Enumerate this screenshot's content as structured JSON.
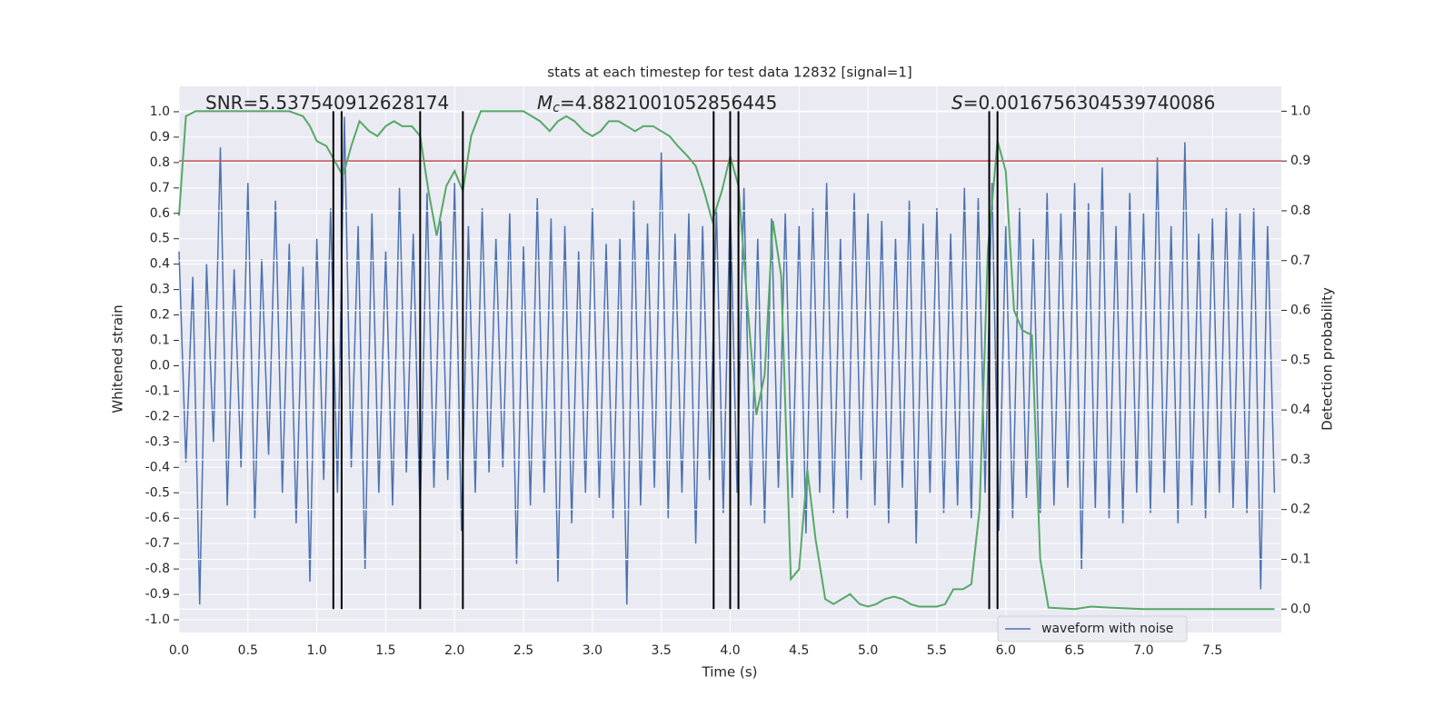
{
  "chart_data": {
    "type": "line",
    "title": "stats at each timestep for test data 12832 [signal=1]",
    "xlabel": "Time (s)",
    "ylabel": "Whitened strain",
    "y2label": "Detection probability",
    "xlim": [
      0,
      8.0
    ],
    "ylim": [
      -1.05,
      1.1
    ],
    "y2lim": [
      -0.047,
      1.05
    ],
    "xticks": [
      {
        "value": 0,
        "label": "0.0"
      },
      0.5,
      {
        "value": 1,
        "label": "1.0"
      },
      1.5,
      {
        "value": 2,
        "label": "2.0"
      },
      2.5,
      {
        "value": 3,
        "label": "3.0"
      },
      3.5,
      {
        "value": 4,
        "label": "4.0"
      },
      4.5,
      {
        "value": 5,
        "label": "5.0"
      },
      5.5,
      {
        "value": 6,
        "label": "6.0"
      },
      6.5,
      {
        "value": 7,
        "label": "7.0"
      },
      7.5
    ],
    "yticks": [
      {
        "value": -1,
        "label": "-1.0"
      },
      -0.9,
      -0.8,
      -0.7,
      -0.6,
      -0.5,
      -0.4,
      -0.3,
      -0.2,
      -0.1,
      {
        "value": 0,
        "label": "0.0"
      },
      0.1,
      0.2,
      0.3,
      0.4,
      0.5,
      0.6,
      0.7,
      0.8,
      0.9,
      {
        "value": 1,
        "label": "1.0"
      }
    ],
    "y2ticks": [
      {
        "value": 0,
        "label": "0.0"
      },
      0.1,
      0.2,
      0.3,
      0.4,
      0.5,
      0.6,
      0.7,
      0.8,
      0.9,
      {
        "value": 1,
        "label": "1.0"
      }
    ],
    "grid": true,
    "legend": "best",
    "annotations": [
      {
        "text": "SNR=5.537540912628174"
      },
      {
        "symbol": "M",
        "subscript": "c",
        "text": "=4.8821001052856445"
      },
      {
        "symbol": "S",
        "text": "=0.0016756304539740086"
      }
    ],
    "threshold": {
      "value": 0.9,
      "axis": "y2",
      "color": "#c44e52"
    },
    "vlines": [
      1.12,
      1.18,
      1.75,
      2.06,
      3.88,
      4.0,
      4.06,
      5.88,
      5.94
    ],
    "vline_range": [
      0,
      1
    ],
    "vline_color": "#000000",
    "series": [
      {
        "name": "waveform with noise",
        "color": "#4c72b0",
        "x": [
          0,
          0.05,
          0.1,
          0.15,
          0.2,
          0.25,
          0.3,
          0.35,
          0.4,
          0.45,
          0.5,
          0.55,
          0.6,
          0.65,
          0.7,
          0.75,
          0.8,
          0.85,
          0.9,
          0.95,
          1,
          1.05,
          1.1,
          1.15,
          1.2,
          1.25,
          1.3,
          1.35,
          1.4,
          1.45,
          1.5,
          1.55,
          1.6,
          1.65,
          1.7,
          1.75,
          1.8,
          1.85,
          1.9,
          1.95,
          2,
          2.05,
          2.1,
          2.15,
          2.2,
          2.25,
          2.3,
          2.35,
          2.4,
          2.45,
          2.5,
          2.55,
          2.6,
          2.65,
          2.7,
          2.75,
          2.8,
          2.85,
          2.9,
          2.95,
          3,
          3.05,
          3.1,
          3.15,
          3.2,
          3.25,
          3.3,
          3.35,
          3.4,
          3.45,
          3.5,
          3.55,
          3.6,
          3.65,
          3.7,
          3.75,
          3.8,
          3.85,
          3.9,
          3.95,
          4,
          4.05,
          4.1,
          4.15,
          4.2,
          4.25,
          4.3,
          4.35,
          4.4,
          4.45,
          4.5,
          4.55,
          4.6,
          4.65,
          4.7,
          4.75,
          4.8,
          4.85,
          4.9,
          4.95,
          5,
          5.05,
          5.1,
          5.15,
          5.2,
          5.25,
          5.3,
          5.35,
          5.4,
          5.45,
          5.5,
          5.55,
          5.6,
          5.65,
          5.7,
          5.75,
          5.8,
          5.85,
          5.9,
          5.95,
          6,
          6.05,
          6.1,
          6.15,
          6.2,
          6.25,
          6.3,
          6.35,
          6.4,
          6.45,
          6.5,
          6.55,
          6.6,
          6.65,
          6.7,
          6.75,
          6.8,
          6.85,
          6.9,
          6.95,
          7,
          7.05,
          7.1,
          7.15,
          7.2,
          7.25,
          7.3,
          7.35,
          7.4,
          7.45,
          7.5,
          7.55,
          7.6,
          7.65,
          7.7,
          7.75,
          7.8,
          7.85,
          7.9,
          7.95
        ],
        "values": [
          0.45,
          -0.38,
          0.35,
          -0.94,
          0.4,
          -0.3,
          0.86,
          -0.55,
          0.38,
          -0.4,
          0.72,
          -0.6,
          0.42,
          -0.35,
          0.65,
          -0.5,
          0.48,
          -0.62,
          0.39,
          -0.85,
          0.5,
          -0.45,
          0.62,
          -0.5,
          0.98,
          -0.4,
          0.55,
          -0.8,
          0.6,
          -0.5,
          0.45,
          -0.55,
          0.7,
          -0.42,
          0.52,
          -0.6,
          0.68,
          -0.48,
          0.57,
          -0.45,
          0.72,
          -0.65,
          0.55,
          -0.5,
          0.62,
          -0.42,
          0.5,
          -0.4,
          0.6,
          -0.78,
          0.47,
          -0.55,
          0.66,
          -0.5,
          0.58,
          -0.85,
          0.55,
          -0.62,
          0.45,
          -0.5,
          0.62,
          -0.52,
          0.48,
          -0.6,
          0.5,
          -0.94,
          0.65,
          -0.55,
          0.56,
          -0.48,
          0.84,
          -0.6,
          0.52,
          -0.5,
          0.6,
          -0.7,
          0.55,
          -0.45,
          0.62,
          -0.58,
          0.65,
          -0.5,
          0.7,
          -0.55,
          0.5,
          -0.62,
          0.58,
          -0.48,
          0.6,
          -0.52,
          0.55,
          -0.66,
          0.62,
          -0.5,
          0.72,
          -0.58,
          0.5,
          -0.6,
          0.68,
          -0.45,
          0.6,
          -0.55,
          0.57,
          -0.62,
          0.5,
          -0.48,
          0.65,
          -0.7,
          0.56,
          -0.5,
          0.62,
          -0.58,
          0.52,
          -0.55,
          0.7,
          -0.6,
          0.66,
          -0.5,
          0.72,
          -0.65,
          0.55,
          -0.6,
          0.62,
          -0.52,
          0.5,
          -0.58,
          0.68,
          -0.55,
          0.6,
          -0.48,
          0.72,
          -0.8,
          0.64,
          -0.56,
          0.78,
          -0.6,
          0.55,
          -0.62,
          0.68,
          -0.5,
          0.6,
          -0.58,
          0.82,
          -0.5,
          0.55,
          -0.62,
          0.88,
          -0.55,
          0.52,
          -0.6,
          0.58,
          -0.5,
          0.62,
          -0.56,
          0.6,
          -0.58,
          0.62,
          -0.88,
          0.55,
          -0.5
        ]
      },
      {
        "color": "#55a868",
        "axis": "y2",
        "x": [
          0,
          0.05,
          0.12,
          0.8,
          0.9,
          0.95,
          1.0,
          1.07,
          1.13,
          1.19,
          1.25,
          1.31,
          1.38,
          1.44,
          1.5,
          1.56,
          1.62,
          1.69,
          1.75,
          1.81,
          1.87,
          1.94,
          2.0,
          2.06,
          2.12,
          2.19,
          2.25,
          2.5,
          2.56,
          2.62,
          2.69,
          2.75,
          2.81,
          2.87,
          2.94,
          3.0,
          3.06,
          3.12,
          3.19,
          3.25,
          3.31,
          3.37,
          3.44,
          3.5,
          3.56,
          3.62,
          3.69,
          3.75,
          3.81,
          3.87,
          3.94,
          4.0,
          4.06,
          4.12,
          4.19,
          4.25,
          4.31,
          4.37,
          4.44,
          4.5,
          4.56,
          4.62,
          4.69,
          4.75,
          4.81,
          4.87,
          4.94,
          5.0,
          5.06,
          5.12,
          5.19,
          5.25,
          5.31,
          5.37,
          5.5,
          5.56,
          5.62,
          5.69,
          5.75,
          5.81,
          5.87,
          5.94,
          6.0,
          6.06,
          6.12,
          6.19,
          6.25,
          6.31,
          6.5,
          6.62,
          6.75,
          7.0,
          7.5,
          7.8,
          7.95
        ],
        "values": [
          0.79,
          0.99,
          1.0,
          1.0,
          0.99,
          0.97,
          0.94,
          0.93,
          0.9,
          0.87,
          0.93,
          0.98,
          0.96,
          0.95,
          0.97,
          0.98,
          0.97,
          0.97,
          0.95,
          0.84,
          0.75,
          0.85,
          0.88,
          0.84,
          0.95,
          1.0,
          1.0,
          1.0,
          0.99,
          0.98,
          0.96,
          0.98,
          0.99,
          0.98,
          0.96,
          0.95,
          0.96,
          0.98,
          0.98,
          0.97,
          0.96,
          0.97,
          0.97,
          0.96,
          0.95,
          0.93,
          0.91,
          0.89,
          0.84,
          0.78,
          0.84,
          0.91,
          0.85,
          0.63,
          0.39,
          0.47,
          0.78,
          0.67,
          0.06,
          0.08,
          0.28,
          0.14,
          0.02,
          0.01,
          0.02,
          0.03,
          0.01,
          0.005,
          0.01,
          0.02,
          0.025,
          0.02,
          0.01,
          0.005,
          0.005,
          0.01,
          0.04,
          0.04,
          0.05,
          0.2,
          0.72,
          0.94,
          0.88,
          0.6,
          0.56,
          0.55,
          0.1,
          0.003,
          0,
          0.005,
          0.003,
          0,
          0,
          0,
          0
        ]
      }
    ]
  }
}
